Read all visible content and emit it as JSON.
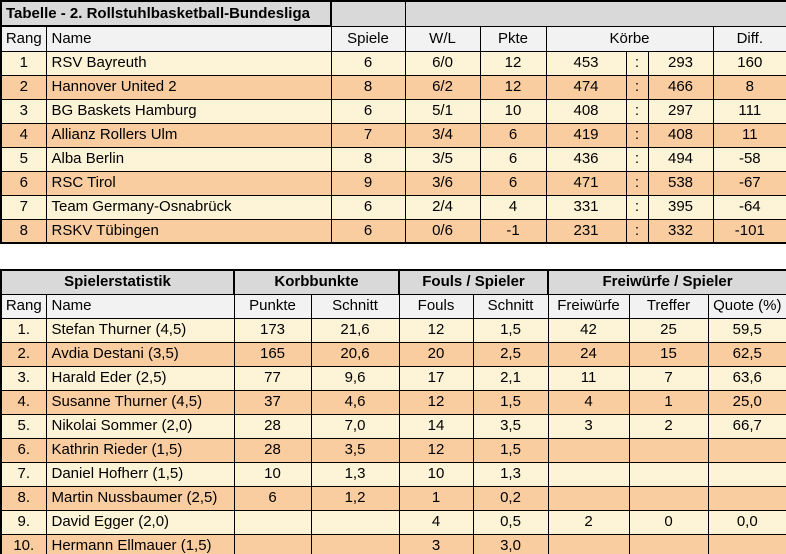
{
  "colors": {
    "header_gray": "#D9D9D9",
    "subheader_gray": "#F2F2F2",
    "row_cream": "#FDF3D6",
    "row_orange": "#FACDA1",
    "border_black": "#000000"
  },
  "standings_table": {
    "title": "Tabelle - 2. Rollstuhlbasketball-Bundesliga",
    "headers": {
      "rank": "Rang",
      "name": "Name",
      "games": "Spiele",
      "wl": "W/L",
      "points": "Pkte",
      "baskets": "Körbe",
      "diff": "Diff."
    },
    "rows": [
      {
        "rank": "1",
        "name": "RSV Bayreuth",
        "games": "6",
        "wl": "6/0",
        "points": "12",
        "scored": "453",
        "colon": ":",
        "conceded": "293",
        "diff": "160"
      },
      {
        "rank": "2",
        "name": "Hannover United 2",
        "games": "8",
        "wl": "6/2",
        "points": "12",
        "scored": "474",
        "colon": ":",
        "conceded": "466",
        "diff": "8"
      },
      {
        "rank": "3",
        "name": "BG Baskets Hamburg",
        "games": "6",
        "wl": "5/1",
        "points": "10",
        "scored": "408",
        "colon": ":",
        "conceded": "297",
        "diff": "111"
      },
      {
        "rank": "4",
        "name": "Allianz Rollers Ulm",
        "games": "7",
        "wl": "3/4",
        "points": "6",
        "scored": "419",
        "colon": ":",
        "conceded": "408",
        "diff": "11"
      },
      {
        "rank": "5",
        "name": "Alba Berlin",
        "games": "8",
        "wl": "3/5",
        "points": "6",
        "scored": "436",
        "colon": ":",
        "conceded": "494",
        "diff": "-58"
      },
      {
        "rank": "6",
        "name": "RSC Tirol",
        "games": "9",
        "wl": "3/6",
        "points": "6",
        "scored": "471",
        "colon": ":",
        "conceded": "538",
        "diff": "-67"
      },
      {
        "rank": "7",
        "name": "Team Germany-Osnabrück",
        "games": "6",
        "wl": "2/4",
        "points": "4",
        "scored": "331",
        "colon": ":",
        "conceded": "395",
        "diff": "-64"
      },
      {
        "rank": "8",
        "name": "RSKV Tübingen",
        "games": "6",
        "wl": "0/6",
        "points": "-1",
        "scored": "231",
        "colon": ":",
        "conceded": "332",
        "diff": "-101"
      }
    ]
  },
  "player_table": {
    "group_headers": {
      "stats": "Spielerstatistik",
      "korb": "Korbbunkte",
      "fouls": "Fouls / Spieler",
      "freiwuerfe": "Freiwürfe / Spieler"
    },
    "headers": {
      "rank": "Rang",
      "name": "Name",
      "punkte": "Punkte",
      "korb_schnitt": "Schnitt",
      "fouls": "Fouls",
      "fouls_schnitt": "Schnitt",
      "freiwuerfe": "Freiwürfe",
      "treffer": "Treffer",
      "quote": "Quote (%)"
    },
    "rows": [
      {
        "rank": "1.",
        "name": "Stefan Thurner (4,5)",
        "punkte": "173",
        "korb_schnitt": "21,6",
        "fouls": "12",
        "fouls_schnitt": "1,5",
        "freiwuerfe": "42",
        "treffer": "25",
        "quote": "59,5"
      },
      {
        "rank": "2.",
        "name": "Avdia Destani (3,5)",
        "punkte": "165",
        "korb_schnitt": "20,6",
        "fouls": "20",
        "fouls_schnitt": "2,5",
        "freiwuerfe": "24",
        "treffer": "15",
        "quote": "62,5"
      },
      {
        "rank": "3.",
        "name": "Harald Eder (2,5)",
        "punkte": "77",
        "korb_schnitt": "9,6",
        "fouls": "17",
        "fouls_schnitt": "2,1",
        "freiwuerfe": "11",
        "treffer": "7",
        "quote": "63,6"
      },
      {
        "rank": "4.",
        "name": "Susanne Thurner (4,5)",
        "punkte": "37",
        "korb_schnitt": "4,6",
        "fouls": "12",
        "fouls_schnitt": "1,5",
        "freiwuerfe": "4",
        "treffer": "1",
        "quote": "25,0"
      },
      {
        "rank": "5.",
        "name": "Nikolai Sommer  (2,0)",
        "punkte": "28",
        "korb_schnitt": "7,0",
        "fouls": "14",
        "fouls_schnitt": "3,5",
        "freiwuerfe": "3",
        "treffer": "2",
        "quote": "66,7"
      },
      {
        "rank": "6.",
        "name": "Kathrin Rieder (1,5)",
        "punkte": "28",
        "korb_schnitt": "3,5",
        "fouls": "12",
        "fouls_schnitt": "1,5",
        "freiwuerfe": "",
        "treffer": "",
        "quote": ""
      },
      {
        "rank": "7.",
        "name": "Daniel Hofherr (1,5)",
        "punkte": "10",
        "korb_schnitt": "1,3",
        "fouls": "10",
        "fouls_schnitt": "1,3",
        "freiwuerfe": "",
        "treffer": "",
        "quote": ""
      },
      {
        "rank": "8.",
        "name": "Martin Nussbaumer (2,5)",
        "punkte": "6",
        "korb_schnitt": "1,2",
        "fouls": "1",
        "fouls_schnitt": "0,2",
        "freiwuerfe": "",
        "treffer": "",
        "quote": ""
      },
      {
        "rank": "9.",
        "name": "David Egger (2,0)",
        "punkte": "",
        "korb_schnitt": "",
        "fouls": "4",
        "fouls_schnitt": "0,5",
        "freiwuerfe": "2",
        "treffer": "0",
        "quote": "0,0"
      },
      {
        "rank": "10.",
        "name": "Hermann Ellmauer (1,5)",
        "punkte": "",
        "korb_schnitt": "",
        "fouls": "3",
        "fouls_schnitt": "3,0",
        "freiwuerfe": "",
        "treffer": "",
        "quote": ""
      }
    ]
  }
}
